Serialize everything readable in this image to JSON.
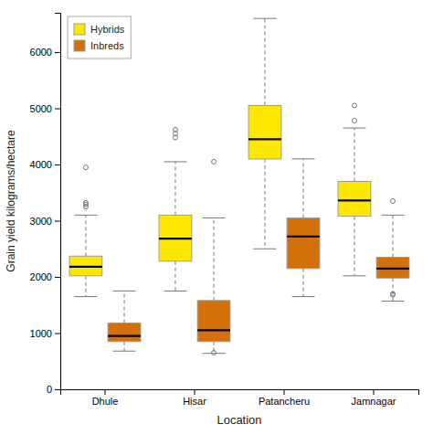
{
  "chart_data": {
    "type": "box",
    "xlabel": "Location",
    "ylabel": "Grain yield kilograms/hectare",
    "categories": [
      "Dhule",
      "Hisar",
      "Patancheru",
      "Jamnagar"
    ],
    "series": [
      {
        "name": "Hybrids",
        "color": "#FFE800",
        "values": [
          {
            "whislo": 1650,
            "q1": 2020,
            "med": 2180,
            "q3": 2370,
            "whishi": 3100,
            "fliers": [
              3250,
              3290,
              3320,
              3950
            ]
          },
          {
            "whislo": 1750,
            "q1": 2280,
            "med": 2680,
            "q3": 3100,
            "whishi": 4050,
            "fliers": [
              4480,
              4550,
              4620
            ]
          },
          {
            "whislo": 2500,
            "q1": 4100,
            "med": 4450,
            "q3": 5050,
            "whishi": 6600,
            "fliers": []
          },
          {
            "whislo": 2020,
            "q1": 3080,
            "med": 3360,
            "q3": 3700,
            "whishi": 4650,
            "fliers": [
              4780,
              5050
            ]
          }
        ]
      },
      {
        "name": "Inbreds",
        "color": "#D4700A",
        "values": [
          {
            "whislo": 680,
            "q1": 850,
            "med": 950,
            "q3": 1180,
            "whishi": 1750,
            "fliers": []
          },
          {
            "whislo": 640,
            "q1": 850,
            "med": 1050,
            "q3": 1580,
            "whishi": 3050,
            "fliers": [
              650,
              4050
            ]
          },
          {
            "whislo": 1650,
            "q1": 2150,
            "med": 2720,
            "q3": 3050,
            "whishi": 4100,
            "fliers": []
          },
          {
            "whislo": 1570,
            "q1": 1980,
            "med": 2150,
            "q3": 2350,
            "whishi": 3100,
            "fliers": [
              1680,
              1700,
              3350
            ]
          }
        ]
      }
    ],
    "ylim": [
      0,
      6700
    ],
    "yticks": [
      0,
      1000,
      2000,
      3000,
      4000,
      5000,
      6000
    ],
    "grid": false,
    "legend": "upper-left"
  }
}
